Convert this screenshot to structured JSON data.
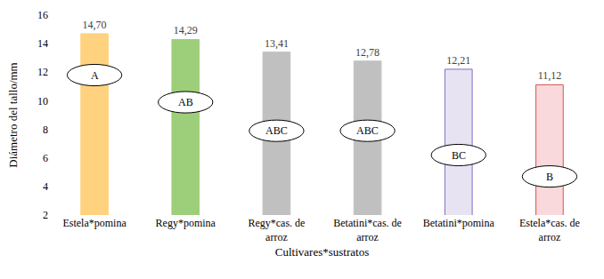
{
  "chart_data": {
    "type": "bar",
    "x_label": "Cultivares*sustratos",
    "y_label": "Diámetro del tallo/mm",
    "categories": [
      "Estela*pomina",
      "Regy*pomina",
      "Regy*cas. de arroz",
      "Betatini*cas. de arroz",
      "Betatini*pomina",
      "Estela*cas. de arroz"
    ],
    "values": [
      14.7,
      14.29,
      13.41,
      12.78,
      12.21,
      11.12
    ],
    "value_labels": [
      "14,70",
      "14,29",
      "13,41",
      "12,78",
      "12,21",
      "11,12"
    ],
    "colors": [
      "#ffd27f",
      "#9dcf7a",
      "#c0c0c0",
      "#c0c0c0",
      "#e8e3f3",
      "#f9d9dc"
    ],
    "data_labels": true,
    "grid": false,
    "ylim": [
      2,
      16
    ],
    "yticks": [
      2,
      4,
      6,
      8,
      10,
      12,
      14,
      16
    ],
    "annotations": [
      {
        "text": "A",
        "category": "Estela*pomina",
        "y": 11.8
      },
      {
        "text": "AB",
        "category": "Regy*pomina",
        "y": 9.9
      },
      {
        "text": "ABC",
        "category": "Regy*cas. de arroz",
        "y": 7.9
      },
      {
        "text": "ABC",
        "category": "Betatini*cas. de arroz",
        "y": 7.9
      },
      {
        "text": "BC",
        "category": "Betatini*pomina",
        "y": 6.2
      },
      {
        "text": "B",
        "category": "Estela*cas. de arroz",
        "y": 4.7
      }
    ]
  }
}
